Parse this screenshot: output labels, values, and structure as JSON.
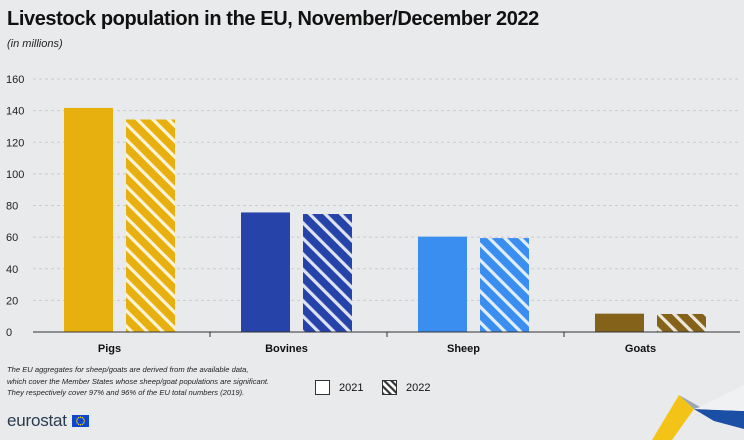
{
  "title": "Livestock population in the EU, November/December 2022",
  "subtitle": "(in millions)",
  "footnote": [
    "The EU aggregates for sheep/goats are derived from the available data,",
    "which cover the Member States whose sheep/goat populations are significant.",
    "They respectively cover 97% and 96% of the EU total numbers (2019)."
  ],
  "brand": {
    "name": "eurostat",
    "logo_icon": "eu-flag-icon"
  },
  "legend": [
    {
      "label": "2021",
      "pattern": "solid"
    },
    {
      "label": "2022",
      "pattern": "hatched"
    }
  ],
  "chart_data": {
    "type": "bar",
    "title": "Livestock population in the EU, November/December 2022",
    "subtitle": "(in millions)",
    "xlabel": "",
    "ylabel": "",
    "ylim": [
      0,
      160
    ],
    "yticks": [
      0,
      20,
      40,
      60,
      80,
      100,
      120,
      140,
      160
    ],
    "grid": true,
    "legend_position": "bottom",
    "categories": [
      "Pigs",
      "Bovines",
      "Sheep",
      "Goats"
    ],
    "colors": [
      "#e8b00f",
      "#2543a8",
      "#3a8ef0",
      "#84621a"
    ],
    "series": [
      {
        "name": "2021",
        "values": [
          141.7,
          75.6,
          60.3,
          11.6
        ]
      },
      {
        "name": "2022",
        "values": [
          134.4,
          74.6,
          59.4,
          11.4
        ]
      }
    ]
  }
}
